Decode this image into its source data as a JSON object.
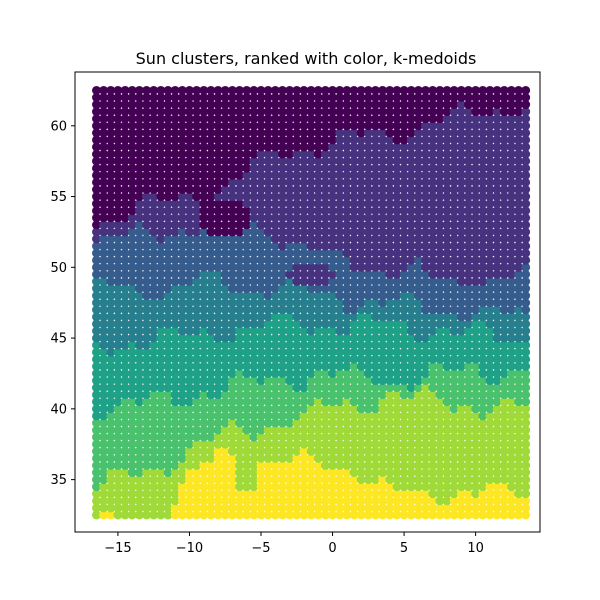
{
  "chart_data": {
    "type": "scatter",
    "title": "Sun clusters, ranked with color, k-medoids",
    "xlabel": "",
    "ylabel": "",
    "xlim": [
      -18.0,
      14.5
    ],
    "ylim": [
      31.3,
      63.8
    ],
    "xticks": [
      -15,
      -10,
      -5,
      0,
      5,
      10
    ],
    "yticks": [
      35,
      40,
      45,
      50,
      55,
      60
    ],
    "xtick_labels": [
      "−15",
      "−10",
      "−5",
      "0",
      "5",
      "10"
    ],
    "ytick_labels": [
      "35",
      "40",
      "45",
      "50",
      "55",
      "60"
    ],
    "grid": false,
    "legend": "none",
    "colormap": "viridis",
    "cluster_colors": [
      "#440154",
      "#46327e",
      "#365c8d",
      "#277f8e",
      "#1fa187",
      "#4ac16d",
      "#a0da39",
      "#fde725"
    ],
    "x_range": [
      -16.5,
      13.5
    ],
    "y_range": [
      32.5,
      62.5
    ],
    "grid_step": 0.5,
    "cluster_boundaries": [
      {
        "x": [
          -16.5,
          -12,
          -8,
          -4,
          0,
          4,
          8,
          13.5
        ],
        "y": [
          53.5,
          54.5,
          55.5,
          58,
          59,
          59.5,
          60.5,
          61.5
        ]
      },
      {
        "x": [
          -16.5,
          -12,
          -8,
          -4,
          0,
          4,
          8,
          13.5
        ],
        "y": [
          52,
          52.5,
          53.5,
          52.5,
          50.5,
          50,
          49.5,
          49.5
        ]
      },
      {
        "x": [
          -16.5,
          -12,
          -8,
          -4,
          0,
          4,
          8,
          13.5
        ],
        "y": [
          48.5,
          48.5,
          49,
          48.5,
          48,
          47.5,
          47,
          46.5
        ]
      },
      {
        "x": [
          -16.5,
          -12,
          -8,
          -4,
          0,
          4,
          8,
          13.5
        ],
        "y": [
          44.5,
          45,
          45.5,
          46,
          46,
          46,
          45.5,
          45
        ]
      },
      {
        "x": [
          -16.5,
          -12,
          -8,
          -4,
          0,
          4,
          8,
          13.5
        ],
        "y": [
          40,
          40.5,
          41.5,
          42,
          42.5,
          42,
          42.5,
          43
        ]
      },
      {
        "x": [
          -16.5,
          -12,
          -8,
          -4,
          0,
          4,
          8,
          13.5
        ],
        "y": [
          34.5,
          36,
          38,
          39,
          40,
          41,
          40.5,
          40
        ]
      },
      {
        "x": [
          -16.5,
          -12,
          -8,
          -4,
          0,
          4,
          8,
          13.5
        ],
        "y": [
          32,
          32.3,
          37,
          36,
          36.5,
          34,
          34,
          34
        ]
      }
    ],
    "pockets": [
      {
        "cx": -7.5,
        "cy": 53.5,
        "rx": 1.7,
        "ry": 1.4,
        "cluster": 0
      },
      {
        "cx": -1.5,
        "cy": 49.5,
        "rx": 1.5,
        "ry": 0.8,
        "cluster": 1
      },
      {
        "cx": 9,
        "cy": 50,
        "rx": 2.5,
        "ry": 1,
        "cluster": 1
      },
      {
        "cx": 6,
        "cy": 38.5,
        "rx": 1.8,
        "ry": 1.2,
        "cluster": 6
      },
      {
        "cx": -6,
        "cy": 35,
        "rx": 0.9,
        "ry": 0.9,
        "cluster": 6
      }
    ]
  }
}
